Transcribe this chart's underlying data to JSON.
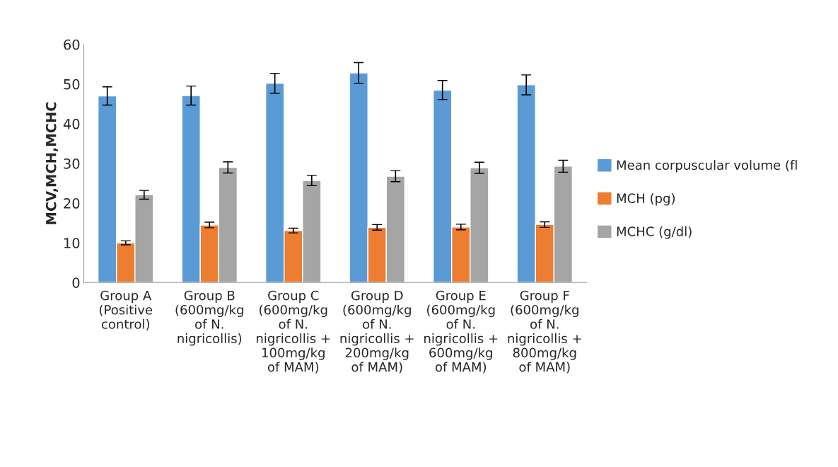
{
  "chart_data": {
    "type": "bar",
    "ylabel": "MCV,MCH,MCHC",
    "categories": [
      "Group A\n(Positive\ncontrol)",
      "Group B\n(600mg/kg\nof N.\nnigricollis)",
      "Group C\n(600mg/kg\nof N.\nnigricollis +\n100mg/kg\nof MAM)",
      "Group D\n(600mg/kg\nof N.\nnigricollis +\n200mg/kg\nof MAM)",
      "Group E\n(600mg/kg\nof N.\nnigricollis +\n600mg/kg\nof MAM)",
      "Group F\n(600mg/kg\nof N.\nnigricollis +\n800mg/kg\nof MAM)"
    ],
    "series": [
      {
        "name": "Mean corpuscular volume (fl",
        "color": "#5b9bd5",
        "values": [
          47,
          47.1,
          50.2,
          52.8,
          48.5,
          49.8
        ],
        "errors": [
          2.3,
          2.4,
          2.5,
          2.6,
          2.4,
          2.5
        ]
      },
      {
        "name": "MCH (pg)",
        "color": "#ed7d31",
        "values": [
          10,
          14.5,
          13.1,
          13.9,
          14.0,
          14.6
        ],
        "errors": [
          0.5,
          0.7,
          0.6,
          0.7,
          0.7,
          0.7
        ]
      },
      {
        "name": "MCHC (g/dl)",
        "color": "#a5a5a5",
        "values": [
          22.1,
          29,
          25.7,
          26.8,
          28.9,
          29.3
        ],
        "errors": [
          1.1,
          1.4,
          1.3,
          1.4,
          1.4,
          1.5
        ]
      }
    ],
    "ylim": [
      0,
      60
    ],
    "yticks": [
      0,
      10,
      20,
      30,
      40,
      50,
      60
    ],
    "grid": false,
    "legend": "right"
  }
}
